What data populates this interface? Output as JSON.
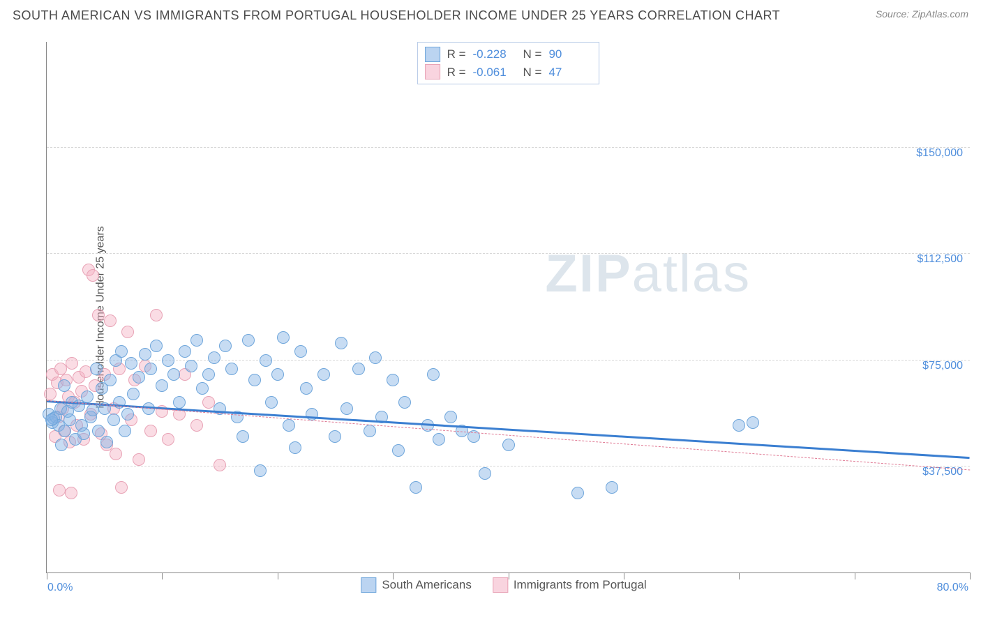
{
  "header": {
    "title": "SOUTH AMERICAN VS IMMIGRANTS FROM PORTUGAL HOUSEHOLDER INCOME UNDER 25 YEARS CORRELATION CHART",
    "source": "Source: ZipAtlas.com"
  },
  "watermark": {
    "bold": "ZIP",
    "light": "atlas"
  },
  "y_axis": {
    "label": "Householder Income Under 25 years",
    "min": 0,
    "max": 187500,
    "ticks": [
      37500,
      75000,
      112500,
      150000
    ],
    "tick_labels": [
      "$37,500",
      "$75,000",
      "$112,500",
      "$150,000"
    ],
    "label_color": "#4f8edc"
  },
  "x_axis": {
    "min": 0,
    "max": 80,
    "ticks": [
      0,
      10,
      20,
      30,
      40,
      50,
      60,
      70,
      80
    ],
    "start_label": "0.0%",
    "end_label": "80.0%",
    "label_color": "#4f8edc"
  },
  "series": [
    {
      "name": "South Americans",
      "color_fill": "rgba(131,177,229,0.45)",
      "color_stroke": "#6fa6db",
      "marker_radius": 9,
      "trend": {
        "color": "#3b7fd1",
        "width": 3,
        "dash": "solid",
        "y_at_xmin": 60000,
        "y_at_xmax": 40000
      },
      "R": "-0.228",
      "N": "90",
      "points": [
        [
          0.2,
          56000
        ],
        [
          0.5,
          53000
        ],
        [
          0.6,
          54500
        ],
        [
          0.8,
          55000
        ],
        [
          1.0,
          52000
        ],
        [
          1.2,
          58000
        ],
        [
          1.3,
          45000
        ],
        [
          1.5,
          66000
        ],
        [
          1.6,
          50000
        ],
        [
          1.8,
          57000
        ],
        [
          2.0,
          54000
        ],
        [
          2.2,
          60000
        ],
        [
          2.5,
          47000
        ],
        [
          2.8,
          59000
        ],
        [
          3.0,
          52000
        ],
        [
          3.2,
          49000
        ],
        [
          3.5,
          62000
        ],
        [
          3.8,
          55000
        ],
        [
          4.0,
          57500
        ],
        [
          4.3,
          72000
        ],
        [
          4.5,
          50000
        ],
        [
          4.8,
          65000
        ],
        [
          5.0,
          58000
        ],
        [
          5.2,
          46000
        ],
        [
          5.5,
          68000
        ],
        [
          5.8,
          54000
        ],
        [
          6.0,
          75000
        ],
        [
          6.3,
          60000
        ],
        [
          6.5,
          78000
        ],
        [
          6.8,
          50000
        ],
        [
          7.0,
          56000
        ],
        [
          7.3,
          74000
        ],
        [
          7.5,
          63000
        ],
        [
          8.0,
          69000
        ],
        [
          8.5,
          77000
        ],
        [
          8.8,
          58000
        ],
        [
          9.0,
          72000
        ],
        [
          9.5,
          80000
        ],
        [
          10.0,
          66000
        ],
        [
          10.5,
          75000
        ],
        [
          11.0,
          70000
        ],
        [
          11.5,
          60000
        ],
        [
          12.0,
          78000
        ],
        [
          12.5,
          73000
        ],
        [
          13.0,
          82000
        ],
        [
          13.5,
          65000
        ],
        [
          14.0,
          70000
        ],
        [
          14.5,
          76000
        ],
        [
          15.0,
          58000
        ],
        [
          15.5,
          80000
        ],
        [
          16.0,
          72000
        ],
        [
          16.5,
          55000
        ],
        [
          17.0,
          48000
        ],
        [
          17.5,
          82000
        ],
        [
          18.0,
          68000
        ],
        [
          18.5,
          36000
        ],
        [
          19.0,
          75000
        ],
        [
          19.5,
          60000
        ],
        [
          20.0,
          70000
        ],
        [
          20.5,
          83000
        ],
        [
          21.0,
          52000
        ],
        [
          21.5,
          44000
        ],
        [
          22.0,
          78000
        ],
        [
          22.5,
          65000
        ],
        [
          23.0,
          56000
        ],
        [
          24.0,
          70000
        ],
        [
          25.0,
          48000
        ],
        [
          25.5,
          81000
        ],
        [
          26.0,
          58000
        ],
        [
          27.0,
          72000
        ],
        [
          28.0,
          50000
        ],
        [
          28.5,
          76000
        ],
        [
          29.0,
          55000
        ],
        [
          30.0,
          68000
        ],
        [
          30.5,
          43000
        ],
        [
          31.0,
          60000
        ],
        [
          32.0,
          30000
        ],
        [
          33.0,
          52000
        ],
        [
          33.5,
          70000
        ],
        [
          34.0,
          47000
        ],
        [
          35.0,
          55000
        ],
        [
          36.0,
          50000
        ],
        [
          37.0,
          48000
        ],
        [
          38.0,
          35000
        ],
        [
          40.0,
          45000
        ],
        [
          46.0,
          28000
        ],
        [
          49.0,
          30000
        ],
        [
          60.0,
          52000
        ],
        [
          61.2,
          53000
        ],
        [
          0.4,
          54000
        ]
      ]
    },
    {
      "name": "Immigrants from Portugal",
      "color_fill": "rgba(244,177,196,0.45)",
      "color_stroke": "#e8a3b6",
      "marker_radius": 9,
      "trend": {
        "color": "#e07a94",
        "width": 1.5,
        "dash": "dashed",
        "y_at_xmin": 60500,
        "y_at_xmax": 36000
      },
      "R": "-0.061",
      "N": "47",
      "points": [
        [
          0.3,
          63000
        ],
        [
          0.5,
          70000
        ],
        [
          0.7,
          48000
        ],
        [
          0.9,
          67000
        ],
        [
          1.0,
          55000
        ],
        [
          1.2,
          72000
        ],
        [
          1.4,
          58000
        ],
        [
          1.5,
          50000
        ],
        [
          1.7,
          68000
        ],
        [
          1.9,
          62000
        ],
        [
          2.0,
          46000
        ],
        [
          2.2,
          74000
        ],
        [
          2.4,
          60000
        ],
        [
          2.6,
          52000
        ],
        [
          2.8,
          69000
        ],
        [
          3.0,
          64000
        ],
        [
          3.2,
          47000
        ],
        [
          3.4,
          71000
        ],
        [
          3.6,
          107000
        ],
        [
          3.8,
          56000
        ],
        [
          4.0,
          105000
        ],
        [
          4.2,
          66000
        ],
        [
          4.5,
          91000
        ],
        [
          4.7,
          49000
        ],
        [
          5.0,
          70000
        ],
        [
          5.2,
          45000
        ],
        [
          5.5,
          89000
        ],
        [
          5.8,
          58000
        ],
        [
          6.0,
          42000
        ],
        [
          6.3,
          72000
        ],
        [
          6.5,
          30000
        ],
        [
          7.0,
          85000
        ],
        [
          7.3,
          54000
        ],
        [
          7.6,
          68000
        ],
        [
          8.0,
          40000
        ],
        [
          8.5,
          73000
        ],
        [
          9.0,
          50000
        ],
        [
          9.5,
          91000
        ],
        [
          10.0,
          57000
        ],
        [
          10.5,
          47000
        ],
        [
          11.5,
          56000
        ],
        [
          12.0,
          70000
        ],
        [
          13.0,
          52000
        ],
        [
          14.0,
          60000
        ],
        [
          15.0,
          38000
        ],
        [
          1.1,
          29000
        ],
        [
          2.1,
          28000
        ]
      ]
    }
  ],
  "legend_swatch_styles": [
    {
      "fill": "rgba(131,177,229,0.55)",
      "stroke": "#6fa6db"
    },
    {
      "fill": "rgba(244,177,196,0.55)",
      "stroke": "#e8a3b6"
    }
  ]
}
